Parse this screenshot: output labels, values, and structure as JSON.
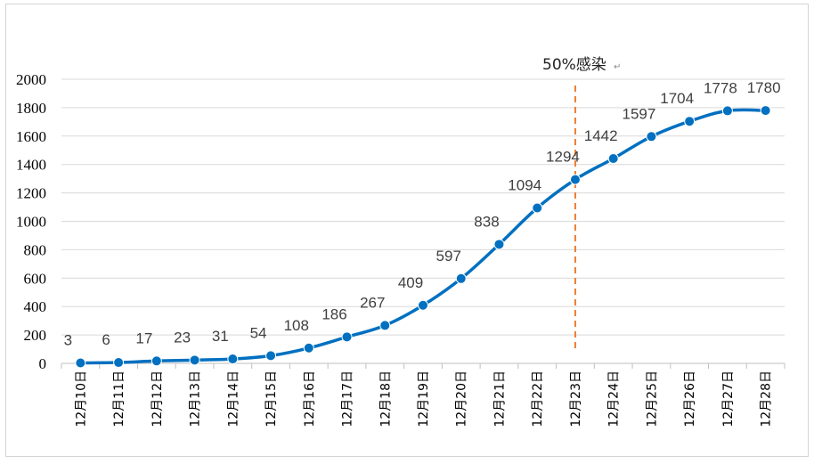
{
  "chart_data": {
    "type": "line",
    "categories": [
      "12月10日",
      "12月11日",
      "12月12日",
      "12月13日",
      "12月14日",
      "12月15日",
      "12月16日",
      "12月17日",
      "12月18日",
      "12月19日",
      "12月20日",
      "12月21日",
      "12月22日",
      "12月23日",
      "12月24日",
      "12月25日",
      "12月26日",
      "12月27日",
      "12月28日"
    ],
    "values": [
      3,
      6,
      17,
      23,
      31,
      54,
      108,
      186,
      267,
      409,
      597,
      838,
      1094,
      1294,
      1442,
      1597,
      1704,
      1778,
      1780
    ],
    "ylim": [
      0,
      2000
    ],
    "yticks": [
      0,
      200,
      400,
      600,
      800,
      1000,
      1200,
      1400,
      1600,
      1800,
      2000
    ],
    "ytick_labels": [
      "0",
      "200",
      "400",
      "600",
      "800",
      "1000",
      "1200",
      "1400",
      "1600",
      "1800",
      "2000"
    ],
    "grid": true,
    "line_color": "#0070c0",
    "marker_color": "#0070c0",
    "annotation": {
      "text": "50%感染",
      "symbol": "↵",
      "at_category": "12月23日",
      "color": "#ed7d31"
    }
  }
}
